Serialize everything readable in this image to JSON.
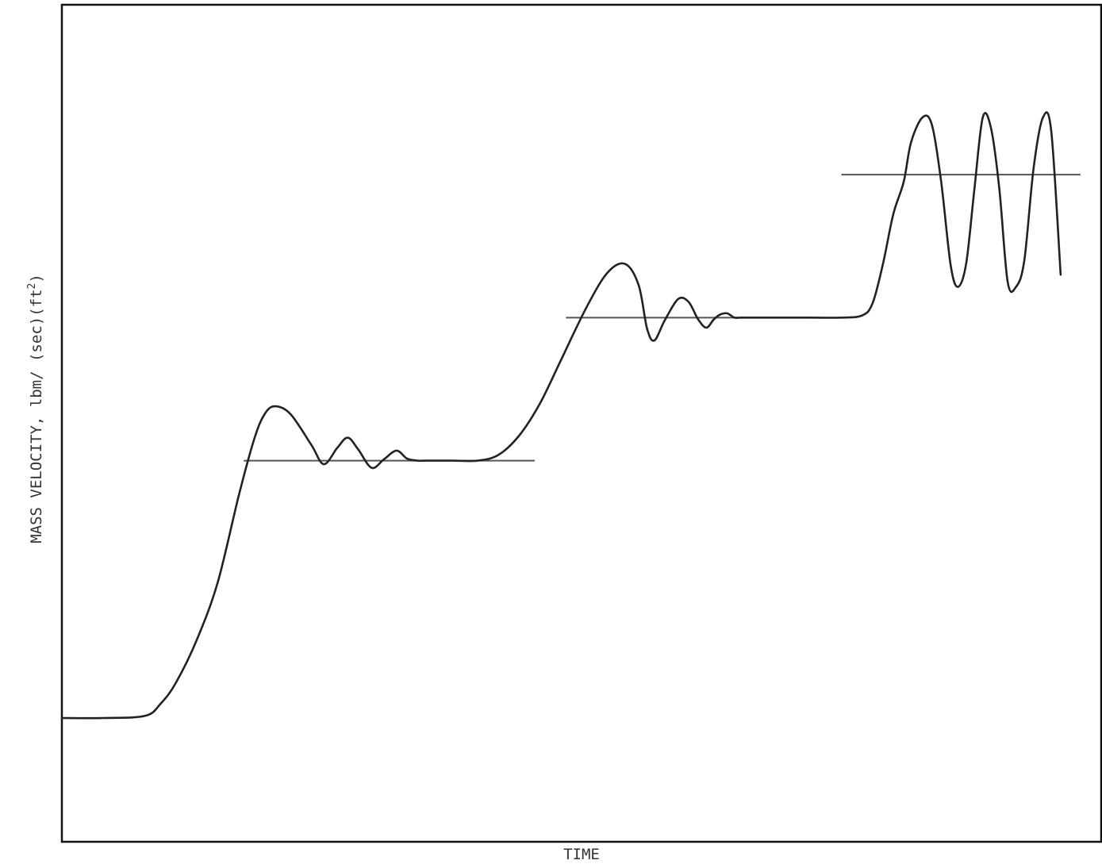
{
  "chart_data": {
    "type": "line",
    "title": "",
    "xlabel": "TIME",
    "ylabel": "MASS VELOCITY, lbm/ (sec)(ft²)",
    "ylabel_parts": {
      "main": "MASS VELOCITY, lbm/ (sec)(ft",
      "sup": "2",
      "close": ")"
    },
    "xlim": [
      0,
      100
    ],
    "ylim": [
      0,
      100
    ],
    "grid": false,
    "legend": "none",
    "colors": {
      "response": "#222222",
      "setpoint": "#555555",
      "axes": "#111111"
    },
    "series": [
      {
        "x": [
          0,
          4,
          8,
          9.5,
          11,
          13,
          15,
          17,
          18.5,
          19.5,
          20.5,
          22,
          24,
          25.2,
          26.5,
          27.5,
          28.5,
          29.8,
          31,
          32.2,
          33.2,
          34.2,
          35,
          36,
          37.5,
          40,
          42,
          44,
          46,
          48,
          50.5,
          52.5,
          54.2,
          55.5,
          56.3,
          57,
          58,
          59.3,
          60.3,
          61.2,
          62,
          62.7,
          63.3,
          64,
          64.7,
          65.3,
          67,
          70,
          72,
          75,
          77,
          78,
          79,
          80,
          81,
          81.7,
          82.8,
          83.7,
          84.6,
          85.5,
          86.2,
          87,
          87.8,
          88.6,
          89.4,
          90.2,
          91,
          91.8,
          92.6,
          93.5,
          94.4,
          95.2,
          96.1
        ],
        "y": [
          16,
          16,
          16.3,
          18,
          21,
          27,
          35,
          47,
          55,
          58.5,
          59.6,
          58.5,
          54.2,
          51.5,
          53.8,
          55.2,
          53.6,
          51,
          52.2,
          53.4,
          52.3,
          52,
          52,
          52,
          52,
          52,
          52.8,
          55.5,
          60,
          66,
          73.5,
          78.3,
          79.5,
          76.5,
          70.5,
          68.8,
          71.6,
          74.6,
          74.2,
          71.8,
          70.6,
          71.7,
          72.4,
          72.6,
          72,
          72,
          72,
          72,
          72,
          72,
          72.3,
          74,
          79.5,
          86.5,
          91,
          96.5,
          100,
          99,
          91,
          79.5,
          76.3,
          79.5,
          90,
          100,
          98.5,
          90,
          77,
          76.3,
          80,
          93,
          100,
          98,
          78
        ]
      },
      {
        "segments": [
          {
            "x": [
              17.5,
              45.5
            ],
            "y": [
              52,
              52
            ]
          },
          {
            "x": [
              48.5,
              74.5
            ],
            "y": [
              72,
              72
            ]
          },
          {
            "x": [
              75,
              98
            ],
            "y": [
              92,
              92
            ]
          }
        ]
      }
    ]
  }
}
